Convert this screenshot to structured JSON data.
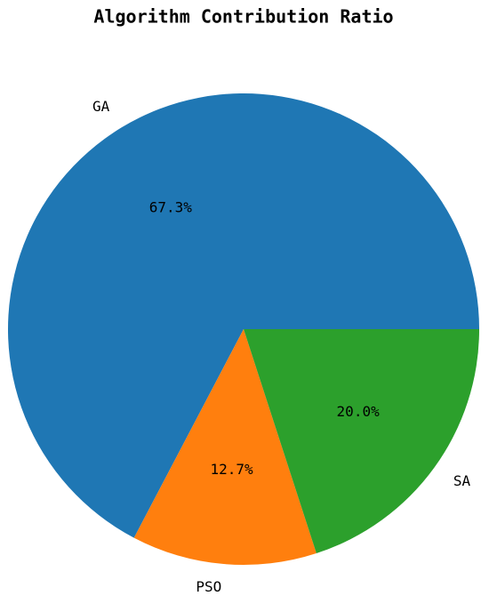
{
  "chart_data": {
    "type": "pie",
    "title": "Algorithm Contribution Ratio",
    "categories": [
      "GA",
      "PSO",
      "SA"
    ],
    "values": [
      67.3,
      12.7,
      20.0
    ],
    "value_labels": [
      "67.3%",
      "12.7%",
      "20.0%"
    ],
    "colors": [
      "#1f77b4",
      "#ff7f0e",
      "#2ca02c"
    ]
  }
}
